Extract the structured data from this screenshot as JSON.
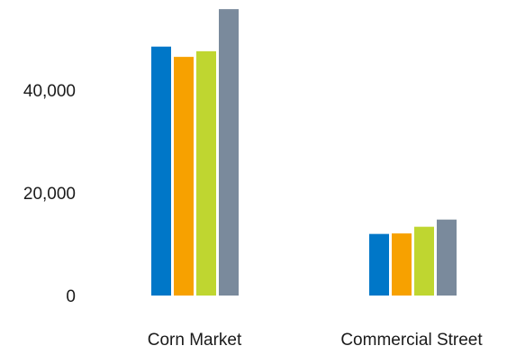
{
  "chart_data": {
    "type": "bar",
    "title": "",
    "xlabel": "",
    "ylabel": "",
    "categories": [
      "Corn Market",
      "Commercial Street"
    ],
    "series": [
      {
        "values": [
          48500,
          12000
        ]
      },
      {
        "values": [
          46500,
          12100
        ]
      },
      {
        "values": [
          47600,
          13400
        ]
      },
      {
        "values": [
          55800,
          14800
        ]
      }
    ],
    "colors": [
      "#0077c8",
      "#f7a100",
      "#bfd630",
      "#7a8a9c"
    ],
    "ylim": [
      0,
      56000
    ],
    "yticks": [
      0,
      20000,
      40000
    ],
    "ytick_labels": [
      "0",
      "20,000",
      "40,000"
    ],
    "grid": false,
    "legend": "none"
  }
}
